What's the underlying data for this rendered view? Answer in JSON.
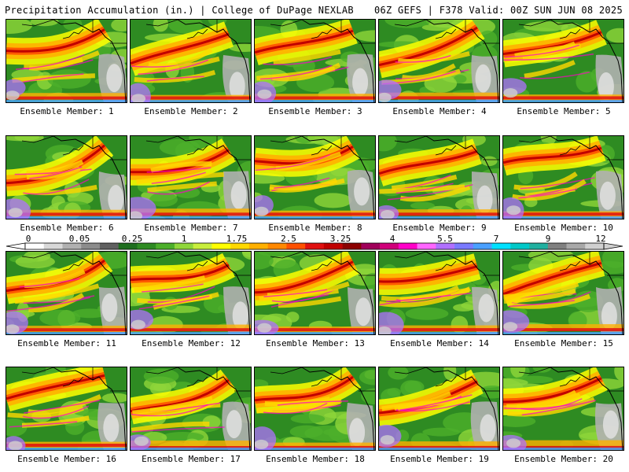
{
  "header": {
    "title_left": "Precipitation Accumulation (in.) | College of DuPage NEXLAB",
    "title_right": "06Z GEFS | F378 Valid: 00Z SUN JUN 08 2025"
  },
  "panels": [
    {
      "label": "Ensemble Member: 1"
    },
    {
      "label": "Ensemble Member: 2"
    },
    {
      "label": "Ensemble Member: 3"
    },
    {
      "label": "Ensemble Member: 4"
    },
    {
      "label": "Ensemble Member: 5"
    },
    {
      "label": "Ensemble Member: 6"
    },
    {
      "label": "Ensemble Member: 7"
    },
    {
      "label": "Ensemble Member: 8"
    },
    {
      "label": "Ensemble Member: 9"
    },
    {
      "label": "Ensemble Member: 10"
    },
    {
      "label": "Ensemble Member: 11"
    },
    {
      "label": "Ensemble Member: 12"
    },
    {
      "label": "Ensemble Member: 13"
    },
    {
      "label": "Ensemble Member: 14"
    },
    {
      "label": "Ensemble Member: 15"
    },
    {
      "label": "Ensemble Member: 16"
    },
    {
      "label": "Ensemble Member: 17"
    },
    {
      "label": "Ensemble Member: 18"
    },
    {
      "label": "Ensemble Member: 19"
    },
    {
      "label": "Ensemble Member: 20"
    }
  ],
  "colorbar": {
    "tick_labels": [
      "0",
      "0.05",
      "0.25",
      "1",
      "1.75",
      "2.5",
      "3.25",
      "4",
      "5.5",
      "7",
      "9",
      "12"
    ],
    "colors": [
      "#ffffff",
      "#d8d8d8",
      "#b0b0b0",
      "#8c8c8c",
      "#606060",
      "#1e6e1e",
      "#2e8b22",
      "#4caf2a",
      "#8fd63a",
      "#c8ee3c",
      "#ffff00",
      "#ffd800",
      "#ffb000",
      "#ff8800",
      "#ff5000",
      "#e01010",
      "#c00000",
      "#8b0000",
      "#a0005a",
      "#d0007a",
      "#ff00c8",
      "#ff66ff",
      "#b070ff",
      "#7a7aff",
      "#4aa0ff",
      "#00e0ff",
      "#00c8c8",
      "#20b0a0",
      "#808080",
      "#a8a8a8",
      "#d0d0d0"
    ]
  }
}
